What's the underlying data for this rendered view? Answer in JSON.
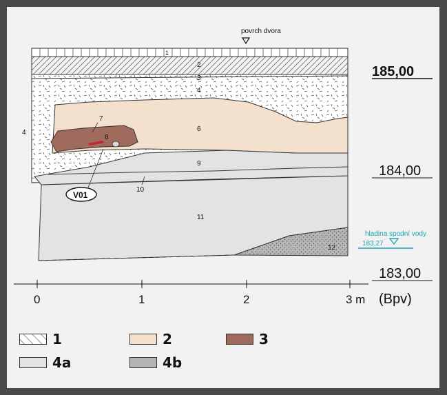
{
  "section": {
    "surface_label": "povrch dvora",
    "layers": [
      {
        "id": "1",
        "label": "1"
      },
      {
        "id": "2",
        "label": "2"
      },
      {
        "id": "3",
        "label": "3"
      },
      {
        "id": "4",
        "label": "4"
      },
      {
        "id": "4b",
        "label": "4"
      },
      {
        "id": "6",
        "label": "6"
      },
      {
        "id": "7",
        "label": "7"
      },
      {
        "id": "8",
        "label": "8"
      },
      {
        "id": "9",
        "label": "9"
      },
      {
        "id": "10",
        "label": "10"
      },
      {
        "id": "11",
        "label": "11"
      },
      {
        "id": "12",
        "label": "12"
      }
    ],
    "feature_label": "V01",
    "elevations": {
      "top": "185,00",
      "mid": "184,00",
      "bottom": "183,00"
    },
    "groundwater": {
      "label": "hladina spodní vody",
      "value": "183,27"
    },
    "scale": {
      "ticks": [
        "0",
        "1",
        "2",
        "3 m"
      ],
      "unit": "(Bpv)"
    }
  },
  "legend": [
    {
      "label": "1",
      "color": "#ffffff",
      "pattern": "dashes"
    },
    {
      "label": "2",
      "color": "#f4e1cd"
    },
    {
      "label": "3",
      "color": "#a06b5c"
    },
    {
      "label": "4a",
      "color": "#e3e3e3"
    },
    {
      "label": "4b",
      "color": "#b5b5b5"
    }
  ],
  "colors": {
    "frame_bg": "#4a4a4a",
    "page_bg": "#f2f2f2",
    "layer6": "#f4e1cd",
    "layer8": "#a06b5c",
    "layer9_11": "#e3e3e3",
    "layer12": "#b5b5b5",
    "water": "#1aa3b8"
  }
}
